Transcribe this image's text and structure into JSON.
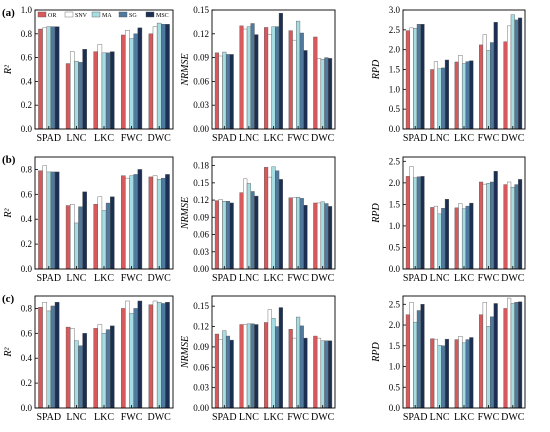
{
  "row_labels": [
    "(a)",
    "(b)",
    "(c)"
  ],
  "colors": {
    "OR": "#d8595c",
    "SNV": "#ffffff",
    "MA": "#a6dde2",
    "SG": "#4f7a9e",
    "MSC": "#1a2f52"
  },
  "legend": {
    "position": "top-left of panel (a) R²",
    "entries": [
      "OR",
      "SNV",
      "MA",
      "SG",
      "MSC"
    ]
  },
  "chart_data": [
    {
      "id": "a-r2",
      "type": "bar",
      "row": "(a)",
      "ylabel": "R²",
      "ylim": [
        0,
        1.0
      ],
      "yticks": [
        "0.0",
        "0.2",
        "0.4",
        "0.6",
        "0.8",
        "1.0"
      ],
      "categories": [
        "SPAD",
        "LNC",
        "LKC",
        "FWC",
        "DWC"
      ],
      "series": [
        {
          "name": "OR",
          "values": [
            0.84,
            0.55,
            0.65,
            0.79,
            0.8
          ]
        },
        {
          "name": "SNV",
          "values": [
            0.85,
            0.65,
            0.71,
            0.83,
            0.86
          ]
        },
        {
          "name": "MA",
          "values": [
            0.86,
            0.57,
            0.64,
            0.76,
            0.89
          ]
        },
        {
          "name": "SG",
          "values": [
            0.86,
            0.56,
            0.64,
            0.8,
            0.88
          ]
        },
        {
          "name": "MSC",
          "values": [
            0.86,
            0.67,
            0.65,
            0.85,
            0.88
          ]
        }
      ]
    },
    {
      "id": "a-nrmse",
      "type": "bar",
      "row": "(a)",
      "ylabel": "NRMSE",
      "ylim": [
        0.0,
        0.15
      ],
      "yticks": [
        "0.00",
        "0.03",
        "0.06",
        "0.09",
        "0.12",
        "0.15"
      ],
      "categories": [
        "SPAD",
        "LNC",
        "LKC",
        "FWC",
        "DWC"
      ],
      "series": [
        {
          "name": "OR",
          "values": [
            0.096,
            0.13,
            0.128,
            0.124,
            0.116
          ]
        },
        {
          "name": "SNV",
          "values": [
            0.092,
            0.126,
            0.119,
            0.112,
            0.089
          ]
        },
        {
          "name": "MA",
          "values": [
            0.097,
            0.129,
            0.129,
            0.136,
            0.088
          ]
        },
        {
          "name": "SG",
          "values": [
            0.094,
            0.133,
            0.129,
            0.121,
            0.09
          ]
        },
        {
          "name": "MSC",
          "values": [
            0.094,
            0.119,
            0.146,
            0.099,
            0.089
          ]
        }
      ]
    },
    {
      "id": "a-rpd",
      "type": "bar",
      "row": "(a)",
      "ylabel": "RPD",
      "ylim": [
        0,
        3.0
      ],
      "yticks": [
        "0.0",
        "0.5",
        "1.0",
        "1.5",
        "2.0",
        "2.5",
        "3.0"
      ],
      "categories": [
        "SPAD",
        "LNC",
        "LKC",
        "FWC",
        "DWC"
      ],
      "series": [
        {
          "name": "OR",
          "values": [
            2.48,
            1.5,
            1.69,
            2.12,
            2.2
          ]
        },
        {
          "name": "SNV",
          "values": [
            2.55,
            1.7,
            1.86,
            2.38,
            2.6
          ]
        },
        {
          "name": "MA",
          "values": [
            2.54,
            1.52,
            1.65,
            1.98,
            2.88
          ]
        },
        {
          "name": "SG",
          "values": [
            2.64,
            1.54,
            1.7,
            2.18,
            2.75
          ]
        },
        {
          "name": "MSC",
          "values": [
            2.64,
            1.74,
            1.72,
            2.69,
            2.8
          ]
        }
      ]
    },
    {
      "id": "b-r2",
      "type": "bar",
      "row": "(b)",
      "ylabel": "R²",
      "ylim": [
        0,
        0.9
      ],
      "yticks": [
        "0.0",
        "0.2",
        "0.4",
        "0.6",
        "0.8"
      ],
      "categories": [
        "SPAD",
        "LNC",
        "LKC",
        "FWC",
        "DWC"
      ],
      "series": [
        {
          "name": "OR",
          "values": [
            0.79,
            0.51,
            0.52,
            0.75,
            0.74
          ]
        },
        {
          "name": "SNV",
          "values": [
            0.83,
            0.52,
            0.58,
            0.73,
            0.75
          ]
        },
        {
          "name": "MA",
          "values": [
            0.78,
            0.37,
            0.47,
            0.75,
            0.72
          ]
        },
        {
          "name": "SG",
          "values": [
            0.78,
            0.5,
            0.53,
            0.76,
            0.73
          ]
        },
        {
          "name": "MSC",
          "values": [
            0.78,
            0.62,
            0.58,
            0.8,
            0.76
          ]
        }
      ]
    },
    {
      "id": "b-nrmse",
      "type": "bar",
      "row": "(b)",
      "ylabel": "NRMSE",
      "ylim": [
        0.0,
        0.195
      ],
      "yticks": [
        "0.00",
        "0.03",
        "0.06",
        "0.09",
        "0.12",
        "0.15",
        "0.18"
      ],
      "categories": [
        "SPAD",
        "LNC",
        "LKC",
        "FWC",
        "DWC"
      ],
      "series": [
        {
          "name": "OR",
          "values": [
            0.119,
            0.133,
            0.177,
            0.124,
            0.115
          ]
        },
        {
          "name": "SNV",
          "values": [
            0.121,
            0.157,
            0.16,
            0.124,
            0.115
          ]
        },
        {
          "name": "MA",
          "values": [
            0.118,
            0.149,
            0.178,
            0.125,
            0.117
          ]
        },
        {
          "name": "SG",
          "values": [
            0.118,
            0.135,
            0.171,
            0.123,
            0.114
          ]
        },
        {
          "name": "MSC",
          "values": [
            0.115,
            0.127,
            0.156,
            0.111,
            0.109
          ]
        }
      ]
    },
    {
      "id": "b-rpd",
      "type": "bar",
      "row": "(b)",
      "ylabel": "RPD",
      "ylim": [
        0,
        2.6
      ],
      "yticks": [
        "0.0",
        "0.5",
        "1.0",
        "1.5",
        "2.0",
        "2.5"
      ],
      "categories": [
        "SPAD",
        "LNC",
        "LKC",
        "FWC",
        "DWC"
      ],
      "series": [
        {
          "name": "OR",
          "values": [
            2.15,
            1.43,
            1.42,
            2.02,
            1.96
          ]
        },
        {
          "name": "SNV",
          "values": [
            2.38,
            1.46,
            1.52,
            1.97,
            2.02
          ]
        },
        {
          "name": "MA",
          "values": [
            2.12,
            1.28,
            1.4,
            1.99,
            1.9
          ]
        },
        {
          "name": "SG",
          "values": [
            2.14,
            1.41,
            1.46,
            2.02,
            1.96
          ]
        },
        {
          "name": "MSC",
          "values": [
            2.15,
            1.62,
            1.53,
            2.27,
            2.08
          ]
        }
      ]
    },
    {
      "id": "c-r2",
      "type": "bar",
      "row": "(c)",
      "ylabel": "R²",
      "ylim": [
        0,
        0.9
      ],
      "yticks": [
        "0.0",
        "0.2",
        "0.4",
        "0.6",
        "0.8"
      ],
      "categories": [
        "SPAD",
        "LNC",
        "LKC",
        "FWC",
        "DWC"
      ],
      "series": [
        {
          "name": "OR",
          "values": [
            0.81,
            0.65,
            0.64,
            0.8,
            0.83
          ]
        },
        {
          "name": "SNV",
          "values": [
            0.85,
            0.64,
            0.67,
            0.86,
            0.86
          ]
        },
        {
          "name": "MA",
          "values": [
            0.78,
            0.54,
            0.6,
            0.76,
            0.85
          ]
        },
        {
          "name": "SG",
          "values": [
            0.82,
            0.5,
            0.63,
            0.8,
            0.84
          ]
        },
        {
          "name": "MSC",
          "values": [
            0.85,
            0.6,
            0.66,
            0.86,
            0.85
          ]
        }
      ]
    },
    {
      "id": "c-nrmse",
      "type": "bar",
      "row": "(c)",
      "ylabel": "NRMSE",
      "ylim": [
        0.0,
        0.165
      ],
      "yticks": [
        "0.00",
        "0.03",
        "0.06",
        "0.09",
        "0.12",
        "0.15"
      ],
      "categories": [
        "SPAD",
        "LNC",
        "LKC",
        "FWC",
        "DWC"
      ],
      "series": [
        {
          "name": "OR",
          "values": [
            0.109,
            0.123,
            0.126,
            0.116,
            0.106
          ]
        },
        {
          "name": "SNV",
          "values": [
            0.101,
            0.123,
            0.145,
            0.103,
            0.103
          ]
        },
        {
          "name": "MA",
          "values": [
            0.114,
            0.124,
            0.132,
            0.134,
            0.099
          ]
        },
        {
          "name": "SG",
          "values": [
            0.106,
            0.124,
            0.12,
            0.121,
            0.099
          ]
        },
        {
          "name": "MSC",
          "values": [
            0.1,
            0.123,
            0.148,
            0.103,
            0.099
          ]
        }
      ]
    },
    {
      "id": "c-rpd",
      "type": "bar",
      "row": "(c)",
      "ylabel": "RPD",
      "ylim": [
        0,
        2.7
      ],
      "yticks": [
        "0.0",
        "0.5",
        "1.0",
        "1.5",
        "2.0",
        "2.5"
      ],
      "categories": [
        "SPAD",
        "LNC",
        "LKC",
        "FWC",
        "DWC"
      ],
      "series": [
        {
          "name": "OR",
          "values": [
            2.25,
            1.67,
            1.65,
            2.25,
            2.4
          ]
        },
        {
          "name": "SNV",
          "values": [
            2.55,
            1.66,
            1.73,
            2.55,
            2.65
          ]
        },
        {
          "name": "MA",
          "values": [
            2.07,
            1.51,
            1.57,
            1.97,
            2.52
          ]
        },
        {
          "name": "SG",
          "values": [
            2.35,
            1.5,
            1.65,
            2.2,
            2.55
          ]
        },
        {
          "name": "MSC",
          "values": [
            2.5,
            1.66,
            1.7,
            2.52,
            2.56
          ]
        }
      ]
    }
  ]
}
